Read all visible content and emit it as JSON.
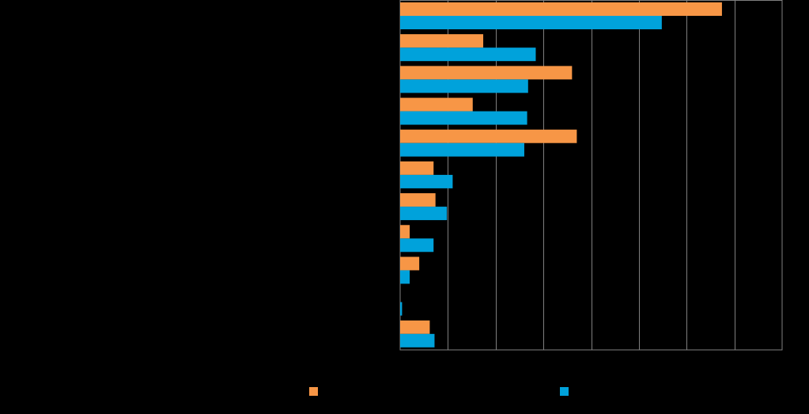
{
  "chart_data": {
    "type": "bar",
    "orientation": "horizontal",
    "categories": [
      "",
      "",
      "",
      "",
      "",
      "",
      "",
      "",
      "",
      "",
      ""
    ],
    "series": [
      {
        "color": "#F79646",
        "values": [
          33.7,
          8.7,
          18.0,
          7.6,
          18.5,
          3.5,
          3.7,
          1.0,
          2.0,
          0.0,
          3.1
        ]
      },
      {
        "color": "#00A2DB",
        "values": [
          27.4,
          14.2,
          13.4,
          13.3,
          13.0,
          5.5,
          4.9,
          3.5,
          1.0,
          0.2,
          3.6
        ]
      }
    ],
    "xlim": [
      0,
      40
    ],
    "x_gridlines": [
      5,
      10,
      15,
      20,
      25,
      30,
      35
    ],
    "grid": true,
    "legend_position": "bottom",
    "title": "",
    "xlabel": "",
    "ylabel": ""
  }
}
